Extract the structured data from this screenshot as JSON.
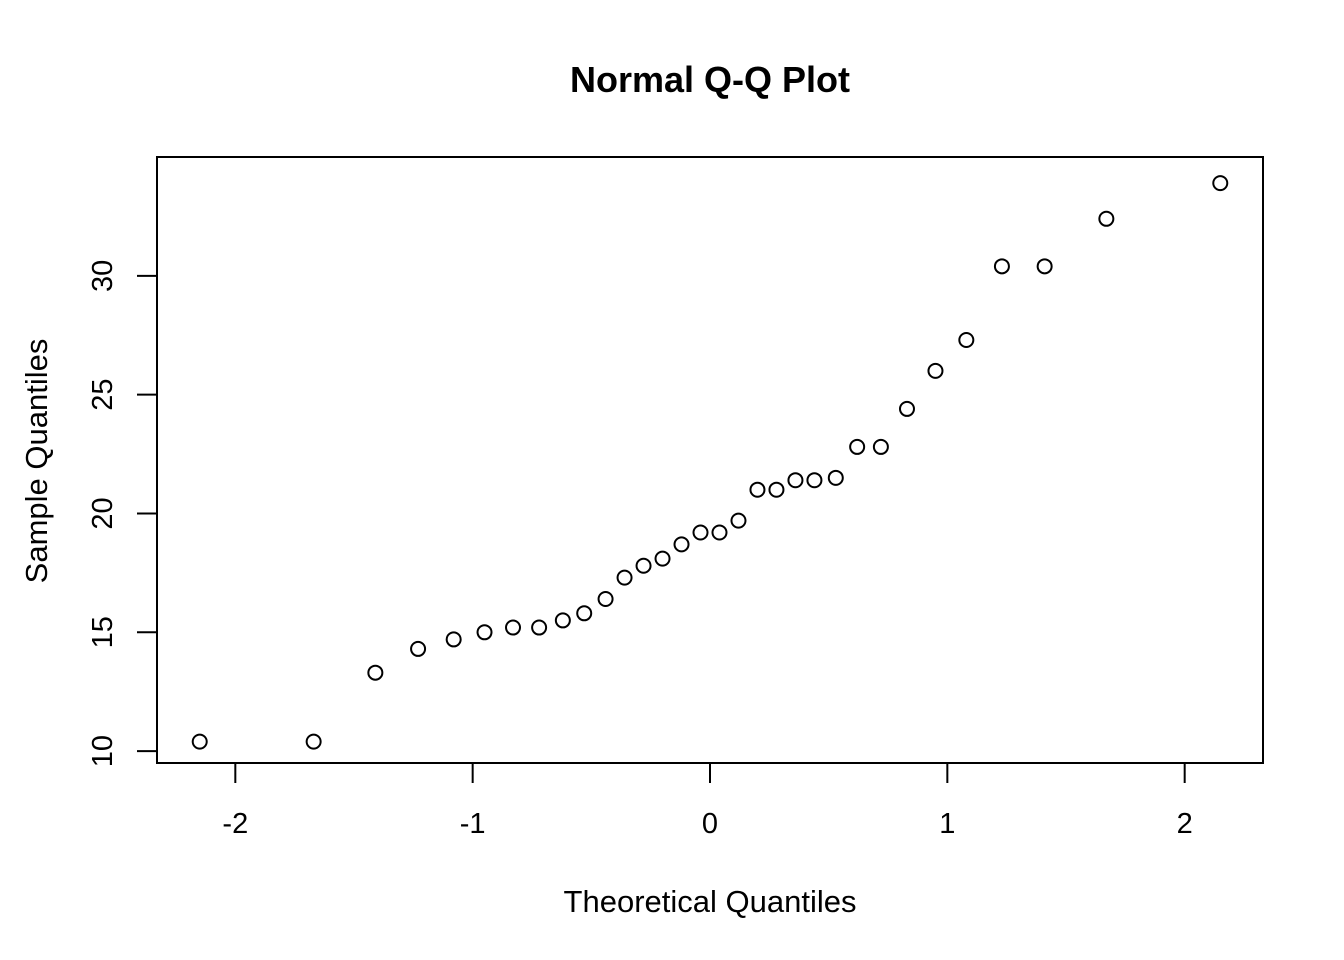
{
  "chart_data": {
    "type": "scatter",
    "title": "Normal Q-Q Plot",
    "xlabel": "Theoretical Quantiles",
    "ylabel": "Sample Quantiles",
    "xlim": [
      -2.33,
      2.33
    ],
    "ylim": [
      9.5,
      35
    ],
    "grid": false,
    "legend": "none",
    "x_ticks": [
      -2,
      -1,
      0,
      1,
      2
    ],
    "x_tick_labels": [
      "-2",
      "-1",
      "0",
      "1",
      "2"
    ],
    "y_ticks": [
      10,
      15,
      20,
      25,
      30
    ],
    "y_tick_labels": [
      "10",
      "15",
      "20",
      "25",
      "30"
    ],
    "points": [
      {
        "x": -2.15,
        "y": 10.4
      },
      {
        "x": -1.67,
        "y": 10.4
      },
      {
        "x": -1.41,
        "y": 13.3
      },
      {
        "x": -1.23,
        "y": 14.3
      },
      {
        "x": -1.08,
        "y": 14.7
      },
      {
        "x": -0.95,
        "y": 15.0
      },
      {
        "x": -0.83,
        "y": 15.2
      },
      {
        "x": -0.72,
        "y": 15.2
      },
      {
        "x": -0.62,
        "y": 15.5
      },
      {
        "x": -0.53,
        "y": 15.8
      },
      {
        "x": -0.44,
        "y": 16.4
      },
      {
        "x": -0.36,
        "y": 17.3
      },
      {
        "x": -0.28,
        "y": 17.8
      },
      {
        "x": -0.2,
        "y": 18.1
      },
      {
        "x": -0.12,
        "y": 18.7
      },
      {
        "x": -0.04,
        "y": 19.2
      },
      {
        "x": 0.04,
        "y": 19.2
      },
      {
        "x": 0.12,
        "y": 19.7
      },
      {
        "x": 0.2,
        "y": 21.0
      },
      {
        "x": 0.28,
        "y": 21.0
      },
      {
        "x": 0.36,
        "y": 21.4
      },
      {
        "x": 0.44,
        "y": 21.4
      },
      {
        "x": 0.53,
        "y": 21.5
      },
      {
        "x": 0.62,
        "y": 22.8
      },
      {
        "x": 0.72,
        "y": 22.8
      },
      {
        "x": 0.83,
        "y": 24.4
      },
      {
        "x": 0.95,
        "y": 26.0
      },
      {
        "x": 1.08,
        "y": 27.3
      },
      {
        "x": 1.23,
        "y": 30.4
      },
      {
        "x": 1.41,
        "y": 30.4
      },
      {
        "x": 1.67,
        "y": 32.4
      },
      {
        "x": 2.15,
        "y": 33.9
      }
    ]
  }
}
